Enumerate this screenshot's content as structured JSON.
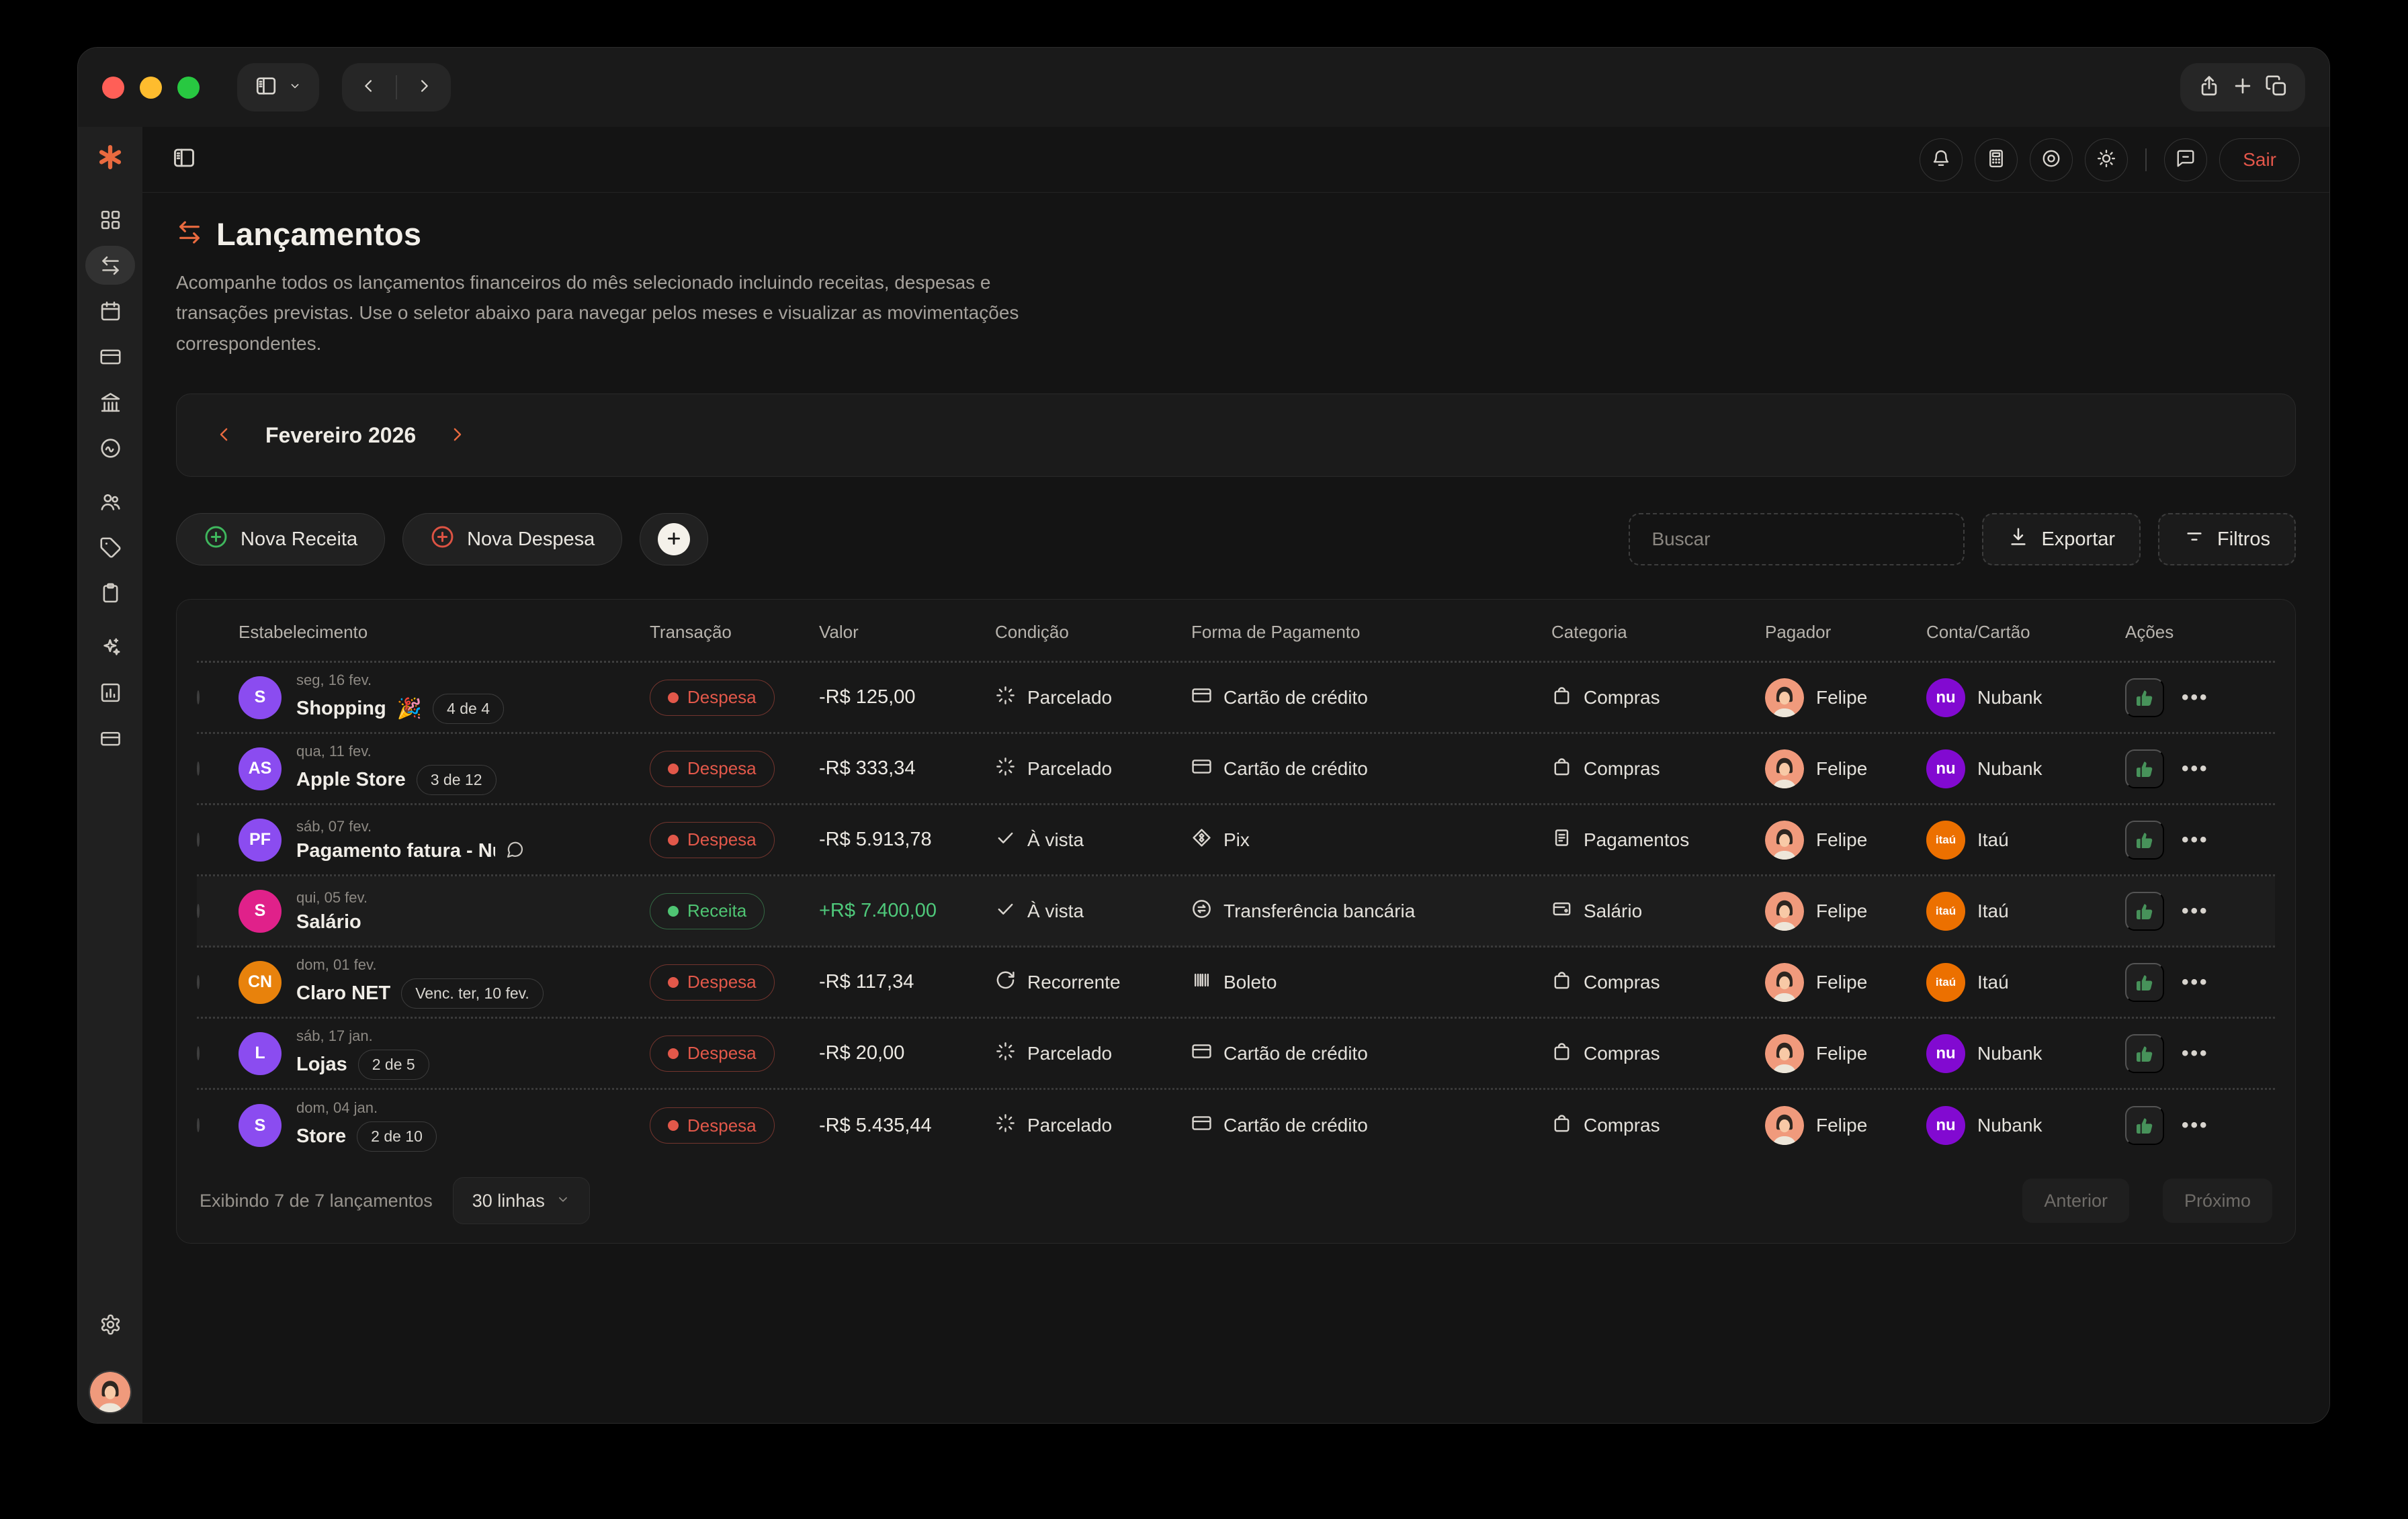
{
  "chrome": {
    "traffic_lights": [
      "close",
      "minimize",
      "zoom"
    ],
    "left_icons": [
      "sidebar-toggle",
      "chevron-down",
      "back",
      "forward"
    ],
    "right_icons": [
      "share",
      "new-tab",
      "tabs-overview"
    ]
  },
  "sidebar": {
    "logo_icon": "asterisk-logo",
    "items": [
      {
        "id": "dashboard",
        "icon": "grid",
        "active": false,
        "gap": false
      },
      {
        "id": "transactions",
        "icon": "swap",
        "active": true,
        "gap": false
      },
      {
        "id": "calendar",
        "icon": "calendar",
        "active": false,
        "gap": false
      },
      {
        "id": "cards",
        "icon": "credit-card",
        "active": false,
        "gap": false
      },
      {
        "id": "bank",
        "icon": "bank",
        "active": false,
        "gap": false
      },
      {
        "id": "goals",
        "icon": "activity",
        "active": false,
        "gap": false
      },
      {
        "id": "people",
        "icon": "users",
        "active": false,
        "gap": true
      },
      {
        "id": "tags",
        "icon": "tag",
        "active": false,
        "gap": false
      },
      {
        "id": "notes",
        "icon": "clipboard",
        "active": false,
        "gap": false
      },
      {
        "id": "ai",
        "icon": "sparkles",
        "active": false,
        "gap": true
      },
      {
        "id": "reports",
        "icon": "report",
        "active": false,
        "gap": false
      },
      {
        "id": "accounts",
        "icon": "wallet",
        "active": false,
        "gap": false
      }
    ],
    "bottom_icons": [
      "gear",
      "user-avatar"
    ]
  },
  "topbar": {
    "left_icon": "panel-left",
    "icons": [
      "bell",
      "calculator",
      "target",
      "sun"
    ],
    "icons_after_divider": [
      "chat"
    ],
    "logout_label": "Sair"
  },
  "page": {
    "title": "Lançamentos",
    "title_icon": "swap",
    "description": "Acompanhe todos os lançamentos financeiros do mês selecionado incluindo receitas, despesas e transações previstas. Use o seletor abaixo para navegar pelos meses e visualizar as movimentações correspondentes."
  },
  "month": {
    "label": "Fevereiro 2026"
  },
  "actions": {
    "new_income": "Nova Receita",
    "new_expense": "Nova Despesa",
    "search_placeholder": "Buscar",
    "export": "Exportar",
    "filters": "Filtros"
  },
  "table": {
    "headers": [
      "Estabelecimento",
      "Transação",
      "Valor",
      "Condição",
      "Forma de Pagamento",
      "Categoria",
      "Pagador",
      "Conta/Cartão",
      "Ações"
    ],
    "rows": [
      {
        "initials": "S",
        "avatar_color": "#8B4CF0",
        "date": "seg, 16 fev.",
        "name": "Shopping",
        "emoji": "🎉",
        "badge": "4 de 4",
        "note": false,
        "truncate": false,
        "highlight": false,
        "transaction": "Despesa",
        "type": "expense",
        "value": "-R$ 125,00",
        "value_sign": "neg",
        "condition": "Parcelado",
        "condition_icon": "loader",
        "payment": "Cartão de crédito",
        "payment_icon": "credit-card",
        "category": "Compras",
        "category_icon": "bag",
        "payer": "Felipe",
        "account": "Nubank",
        "account_icon": "nubank"
      },
      {
        "initials": "AS",
        "avatar_color": "#8B4CF0",
        "date": "qua, 11 fev.",
        "name": "Apple Store",
        "emoji": "",
        "badge": "3 de 12",
        "note": false,
        "truncate": false,
        "highlight": false,
        "transaction": "Despesa",
        "type": "expense",
        "value": "-R$ 333,34",
        "value_sign": "neg",
        "condition": "Parcelado",
        "condition_icon": "loader",
        "payment": "Cartão de crédito",
        "payment_icon": "credit-card",
        "category": "Compras",
        "category_icon": "bag",
        "payer": "Felipe",
        "account": "Nubank",
        "account_icon": "nubank"
      },
      {
        "initials": "PF",
        "avatar_color": "#8B4CF0",
        "date": "sáb, 07 fev.",
        "name": "Pagamento fatura - Nubank",
        "emoji": "",
        "badge": "",
        "note": true,
        "truncate": true,
        "highlight": false,
        "transaction": "Despesa",
        "type": "expense",
        "value": "-R$ 5.913,78",
        "value_sign": "neg",
        "condition": "À vista",
        "condition_icon": "check",
        "payment": "Pix",
        "payment_icon": "pix",
        "category": "Pagamentos",
        "category_icon": "receipt",
        "payer": "Felipe",
        "account": "Itaú",
        "account_icon": "itau"
      },
      {
        "initials": "S",
        "avatar_color": "#E0218A",
        "date": "qui, 05 fev.",
        "name": "Salário",
        "emoji": "",
        "badge": "",
        "note": false,
        "truncate": false,
        "highlight": true,
        "transaction": "Receita",
        "type": "income",
        "value": "+R$ 7.400,00",
        "value_sign": "pos",
        "condition": "À vista",
        "condition_icon": "check",
        "payment": "Transferência bancária",
        "payment_icon": "transfer",
        "category": "Salário",
        "category_icon": "wallet-card",
        "payer": "Felipe",
        "account": "Itaú",
        "account_icon": "itau"
      },
      {
        "initials": "CN",
        "avatar_color": "#E8820C",
        "date": "dom, 01 fev.",
        "name": "Claro NET",
        "emoji": "",
        "badge": "Venc. ter, 10 fev.",
        "note": false,
        "truncate": false,
        "highlight": false,
        "transaction": "Despesa",
        "type": "expense",
        "value": "-R$ 117,34",
        "value_sign": "neg",
        "condition": "Recorrente",
        "condition_icon": "refresh",
        "payment": "Boleto",
        "payment_icon": "barcode",
        "category": "Compras",
        "category_icon": "bag",
        "payer": "Felipe",
        "account": "Itaú",
        "account_icon": "itau"
      },
      {
        "initials": "L",
        "avatar_color": "#8B4CF0",
        "date": "sáb, 17 jan.",
        "name": "Lojas",
        "emoji": "",
        "badge": "2 de 5",
        "note": false,
        "truncate": false,
        "highlight": false,
        "transaction": "Despesa",
        "type": "expense",
        "value": "-R$ 20,00",
        "value_sign": "neg",
        "condition": "Parcelado",
        "condition_icon": "loader",
        "payment": "Cartão de crédito",
        "payment_icon": "credit-card",
        "category": "Compras",
        "category_icon": "bag",
        "payer": "Felipe",
        "account": "Nubank",
        "account_icon": "nubank"
      },
      {
        "initials": "S",
        "avatar_color": "#8B4CF0",
        "date": "dom, 04 jan.",
        "name": "Store",
        "emoji": "",
        "badge": "2 de 10",
        "note": false,
        "truncate": false,
        "highlight": false,
        "transaction": "Despesa",
        "type": "expense",
        "value": "-R$ 5.435,44",
        "value_sign": "neg",
        "condition": "Parcelado",
        "condition_icon": "loader",
        "payment": "Cartão de crédito",
        "payment_icon": "credit-card",
        "category": "Compras",
        "category_icon": "bag",
        "payer": "Felipe",
        "account": "Nubank",
        "account_icon": "nubank"
      }
    ]
  },
  "pagination": {
    "summary": "Exibindo 7 de 7 lançamentos",
    "rows_per_page": "30 linhas",
    "prev": "Anterior",
    "next": "Próximo"
  },
  "colors": {
    "accent_orange": "#E96A3F",
    "expense_red": "#E2584A",
    "income_green": "#4FC97B",
    "nubank_purple": "#820AD1",
    "itau_orange": "#EC7000",
    "avatar_purple": "#8B4CF0",
    "avatar_pink": "#E0218A",
    "avatar_orange": "#E8820C"
  }
}
